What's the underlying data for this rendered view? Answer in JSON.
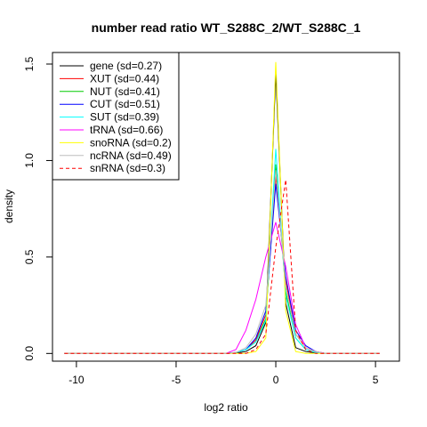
{
  "chart_data": {
    "type": "line",
    "title": "number read ratio WT_S288C_2/WT_S288C_1",
    "xlabel": "log2 ratio",
    "ylabel": "density",
    "xlim": [
      -11.2,
      6.2
    ],
    "ylim": [
      -0.04,
      1.56
    ],
    "xticks": [
      -10,
      -5,
      0,
      5
    ],
    "yticks": [
      0.0,
      0.5,
      1.0,
      1.5
    ],
    "xtick_labels": [
      "-10",
      "-5",
      "0",
      "5"
    ],
    "ytick_labels": [
      "0.0",
      "0.5",
      "1.0",
      "1.5"
    ],
    "grid": false,
    "legend_position": "top-left",
    "series": [
      {
        "name": "gene (sd=0.27)",
        "color": "#000000",
        "dash": "solid",
        "x": [
          -10.6,
          -2.5,
          -2.0,
          -1.5,
          -1.0,
          -0.5,
          0.0,
          0.5,
          1.0,
          1.5,
          2.0,
          2.5,
          5.2
        ],
        "y": [
          0,
          0,
          0.002,
          0.01,
          0.04,
          0.16,
          1.45,
          0.26,
          0.03,
          0.01,
          0.002,
          0,
          0
        ]
      },
      {
        "name": "XUT (sd=0.44)",
        "color": "#ff0000",
        "dash": "solid",
        "x": [
          -10.6,
          -2.5,
          -2.0,
          -1.5,
          -1.0,
          -0.5,
          0.0,
          0.5,
          1.0,
          1.5,
          2.0,
          2.5,
          5.2
        ],
        "y": [
          0,
          0,
          0.005,
          0.02,
          0.07,
          0.2,
          0.92,
          0.38,
          0.1,
          0.03,
          0.01,
          0,
          0
        ]
      },
      {
        "name": "NUT (sd=0.41)",
        "color": "#00cc00",
        "dash": "solid",
        "x": [
          -10.6,
          -2.5,
          -2.0,
          -1.5,
          -1.0,
          -0.5,
          0.0,
          0.5,
          1.0,
          1.5,
          2.0,
          2.5,
          5.2
        ],
        "y": [
          0,
          0,
          0.005,
          0.02,
          0.06,
          0.18,
          0.98,
          0.32,
          0.08,
          0.02,
          0.005,
          0,
          0
        ]
      },
      {
        "name": "CUT (sd=0.51)",
        "color": "#0000ff",
        "dash": "solid",
        "x": [
          -10.6,
          -2.5,
          -2.0,
          -1.5,
          -1.0,
          -0.5,
          0.0,
          0.5,
          1.0,
          1.5,
          2.0,
          2.5,
          5.2
        ],
        "y": [
          0,
          0,
          0.005,
          0.02,
          0.08,
          0.22,
          0.88,
          0.4,
          0.12,
          0.04,
          0.01,
          0,
          0
        ]
      },
      {
        "name": "SUT (sd=0.39)",
        "color": "#00ffff",
        "dash": "solid",
        "x": [
          -10.6,
          -2.5,
          -2.0,
          -1.5,
          -1.0,
          -0.5,
          0.0,
          0.5,
          1.0,
          1.5,
          2.0,
          2.5,
          5.2
        ],
        "y": [
          0,
          0,
          0.005,
          0.02,
          0.06,
          0.17,
          1.06,
          0.3,
          0.08,
          0.02,
          0.005,
          0,
          0
        ]
      },
      {
        "name": "tRNA (sd=0.66)",
        "color": "#ff00ff",
        "dash": "solid",
        "x": [
          -10.6,
          -2.5,
          -2.0,
          -1.5,
          -1.0,
          -0.5,
          0.0,
          0.5,
          1.0,
          1.5,
          2.0,
          2.5,
          5.2
        ],
        "y": [
          0,
          0,
          0.02,
          0.12,
          0.28,
          0.5,
          0.68,
          0.45,
          0.15,
          0.03,
          0.01,
          0,
          0
        ]
      },
      {
        "name": "snoRNA (sd=0.2)",
        "color": "#ffff00",
        "dash": "solid",
        "x": [
          -10.6,
          -2.5,
          -2.0,
          -1.5,
          -1.0,
          -0.5,
          0.0,
          0.5,
          1.0,
          1.5,
          2.0,
          2.5,
          5.2
        ],
        "y": [
          0,
          0,
          0,
          0,
          0.01,
          0.08,
          1.51,
          0.22,
          0.01,
          0,
          0,
          0,
          0
        ]
      },
      {
        "name": "ncRNA (sd=0.49)",
        "color": "#bebebe",
        "dash": "solid",
        "x": [
          -10.6,
          -2.5,
          -2.0,
          -1.5,
          -1.0,
          -0.5,
          0.0,
          0.5,
          1.0,
          1.5,
          2.0,
          2.5,
          5.2
        ],
        "y": [
          0,
          0,
          0.005,
          0.03,
          0.1,
          0.25,
          0.95,
          0.35,
          0.1,
          0.03,
          0.01,
          0,
          0
        ]
      },
      {
        "name": "snRNA (sd=0.3)",
        "color": "#ff0000",
        "dash": "dashed",
        "x": [
          -10.6,
          -2.5,
          -2.0,
          -1.5,
          -1.0,
          -0.5,
          0.0,
          0.5,
          1.0,
          1.5,
          2.0,
          2.5,
          5.2
        ],
        "y": [
          0,
          0,
          0,
          0,
          0.02,
          0.1,
          0.55,
          0.9,
          0.12,
          0.02,
          0,
          0,
          0
        ]
      }
    ]
  }
}
